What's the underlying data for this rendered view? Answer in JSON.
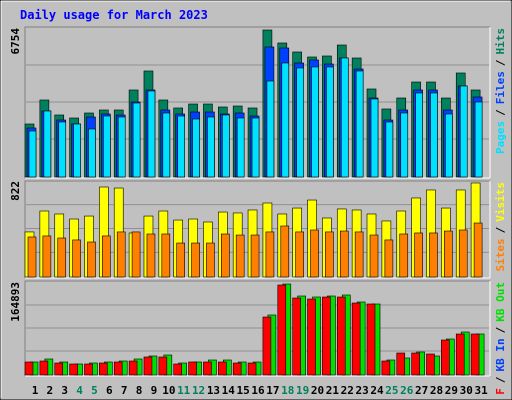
{
  "title": "Daily usage for March 2023",
  "legend_separator": "/",
  "categories": [
    "1",
    "2",
    "3",
    "4",
    "5",
    "6",
    "7",
    "8",
    "9",
    "10",
    "11",
    "12",
    "13",
    "14",
    "15",
    "16",
    "17",
    "18",
    "19",
    "20",
    "21",
    "22",
    "23",
    "24",
    "25",
    "26",
    "27",
    "28",
    "29",
    "30",
    "31"
  ],
  "category_colors": [
    "#000000",
    "#000000",
    "#000000",
    "#00805c",
    "#00805c",
    "#000000",
    "#000000",
    "#000000",
    "#000000",
    "#000000",
    "#00805c",
    "#00805c",
    "#000000",
    "#000000",
    "#000000",
    "#000000",
    "#000000",
    "#00805c",
    "#00805c",
    "#000000",
    "#000000",
    "#000000",
    "#000000",
    "#000000",
    "#00805c",
    "#00805c",
    "#000000",
    "#000000",
    "#000000",
    "#000000",
    "#000000"
  ],
  "chart_data": [
    {
      "type": "bar",
      "ylim": [
        0,
        6754
      ],
      "yticks": [
        6754
      ],
      "series": [
        {
          "name": "Pages",
          "color": "#00e0ff",
          "values": [
            2114,
            3033,
            2527,
            2435,
            2206,
            2803,
            2757,
            3400,
            3952,
            2941,
            2803,
            2665,
            2757,
            2849,
            2711,
            2711,
            4411,
            5238,
            5009,
            5055,
            5055,
            5468,
            4871,
            3584,
            2527,
            2941,
            3860,
            3860,
            2895,
            4181,
            3446
          ]
        },
        {
          "name": "Files",
          "color": "#0040ff",
          "values": [
            2252,
            3033,
            2619,
            2435,
            2757,
            2895,
            2849,
            3446,
            3998,
            3079,
            2895,
            2987,
            2987,
            2895,
            2941,
            2803,
            5974,
            5928,
            5238,
            5376,
            5192,
            5468,
            4963,
            3630,
            2619,
            3079,
            3998,
            3998,
            3079,
            4181,
            3676
          ]
        },
        {
          "name": "Hits",
          "color": "#00805c",
          "values": [
            2435,
            3538,
            2849,
            2711,
            2941,
            3079,
            3079,
            3998,
            4871,
            3538,
            3171,
            3354,
            3354,
            3217,
            3262,
            3171,
            6754,
            6157,
            5744,
            5514,
            5560,
            6065,
            5468,
            4044,
            3125,
            3630,
            4365,
            4365,
            3630,
            4779,
            3998
          ]
        }
      ]
    },
    {
      "type": "bar",
      "ylim": [
        0,
        822
      ],
      "yticks": [
        822
      ],
      "series": [
        {
          "name": "Sites",
          "color": "#ff8000",
          "values": [
            350,
            359,
            341,
            324,
            306,
            359,
            394,
            394,
            376,
            376,
            297,
            297,
            297,
            376,
            367,
            367,
            394,
            446,
            394,
            411,
            394,
            402,
            394,
            367,
            324,
            376,
            385,
            385,
            402,
            411,
            472
          ]
        },
        {
          "name": "Visits",
          "color": "#ffff00",
          "values": [
            394,
            577,
            551,
            507,
            533,
            787,
            778,
            385,
            533,
            577,
            498,
            507,
            481,
            568,
            560,
            586,
            647,
            551,
            603,
            673,
            516,
            595,
            586,
            551,
            490,
            577,
            691,
            761,
            603,
            761,
            822
          ]
        }
      ]
    },
    {
      "type": "bar",
      "ylim": [
        0,
        164893
      ],
      "yticks": [
        164893
      ],
      "series": [
        {
          "name": "KB F",
          "color": "#ff0000",
          "values": [
            23556,
            25368,
            21744,
            19932,
            19932,
            21744,
            23556,
            25368,
            32616,
            32616,
            19932,
            23556,
            23556,
            23556,
            21744,
            21744,
            105096,
            163080,
            139524,
            137712,
            141336,
            141336,
            130464,
            128652,
            25368,
            39864,
            39864,
            38052,
            63420,
            74292,
            74292
          ]
        },
        {
          "name": "KB In",
          "color": "#0040ff"
        },
        {
          "name": "KB Out",
          "color": "#00e000",
          "values": [
            23556,
            28992,
            23556,
            19932,
            21744,
            23556,
            25368,
            28992,
            34428,
            36240,
            21744,
            23556,
            27180,
            27180,
            23556,
            23556,
            108720,
            164893,
            143148,
            141336,
            143148,
            144960,
            132276,
            128652,
            27180,
            30804,
            41676,
            34428,
            65232,
            77916,
            74292
          ]
        }
      ]
    }
  ]
}
